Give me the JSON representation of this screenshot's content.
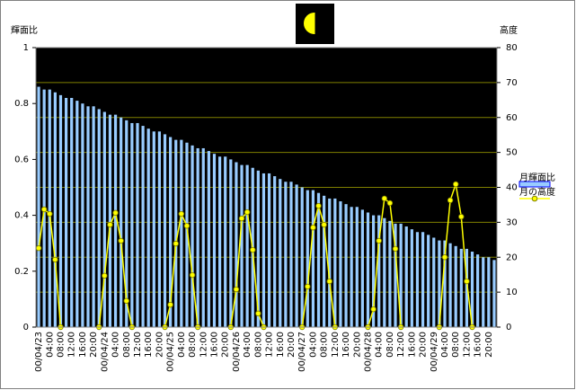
{
  "chart_data": {
    "type": "bar",
    "ylabel": "輝面比",
    "y2label": "高度",
    "categories": [
      "00/04/23",
      null,
      "04:00",
      null,
      "08:00",
      null,
      "12:00",
      null,
      "16:00",
      null,
      "20:00",
      null,
      "00/04/24",
      null,
      "04:00",
      null,
      "08:00",
      null,
      "12:00",
      null,
      "16:00",
      null,
      "20:00",
      null,
      "00/04/25",
      null,
      "04:00",
      null,
      "08:00",
      null,
      "12:00",
      null,
      "16:00",
      null,
      "20:00",
      null,
      "00/04/26",
      null,
      "04:00",
      null,
      "08:00",
      null,
      "12:00",
      null,
      "16:00",
      null,
      "20:00",
      null,
      "00/04/27",
      null,
      "04:00",
      null,
      "08:00",
      null,
      "12:00",
      null,
      "16:00",
      null,
      "20:00",
      null,
      "00/04/28",
      null,
      "04:00",
      null,
      "08:00",
      null,
      "12:00",
      null,
      "16:00",
      null,
      "20:00",
      null,
      "00/04/29",
      null,
      "04:00",
      null,
      "08:00",
      null,
      "12:00",
      null,
      "16:00",
      null,
      "20:00",
      null
    ],
    "series": [
      {
        "name": "月輝面比",
        "type": "bar",
        "color": "#99ccff",
        "values": [
          0.86,
          0.85,
          0.85,
          0.84,
          0.83,
          0.82,
          0.82,
          0.81,
          0.8,
          0.79,
          0.79,
          0.78,
          0.77,
          0.76,
          0.76,
          0.75,
          0.74,
          0.73,
          0.73,
          0.72,
          0.71,
          0.7,
          0.7,
          0.69,
          0.68,
          0.67,
          0.67,
          0.66,
          0.65,
          0.64,
          0.64,
          0.63,
          0.62,
          0.61,
          0.61,
          0.6,
          0.59,
          0.58,
          0.58,
          0.57,
          0.56,
          0.55,
          0.55,
          0.54,
          0.53,
          0.52,
          0.52,
          0.51,
          0.5,
          0.49,
          0.49,
          0.48,
          0.47,
          0.46,
          0.46,
          0.45,
          0.44,
          0.43,
          0.43,
          0.42,
          0.41,
          0.4,
          0.4,
          0.39,
          0.38,
          0.37,
          0.37,
          0.36,
          0.35,
          0.34,
          0.34,
          0.33,
          0.32,
          0.31,
          0.31,
          0.3,
          0.29,
          0.28,
          0.28,
          0.27,
          0.26,
          0.25,
          0.25,
          0.24
        ]
      },
      {
        "name": "月の高度",
        "type": "line",
        "axis": "y2",
        "color": "#ffff00",
        "values": [
          22.6,
          33.7,
          32.4,
          19.3,
          0,
          null,
          null,
          null,
          null,
          null,
          null,
          0,
          14.7,
          29.3,
          32.7,
          24.7,
          7.5,
          0,
          null,
          null,
          null,
          null,
          null,
          0,
          6.4,
          23.9,
          32.4,
          29,
          14.9,
          0,
          null,
          null,
          null,
          null,
          null,
          0,
          10.8,
          31.1,
          32.9,
          22.1,
          3.9,
          0,
          null,
          null,
          null,
          null,
          null,
          null,
          0,
          11.6,
          28.5,
          34.7,
          29.3,
          13.1,
          0,
          null,
          null,
          null,
          null,
          null,
          0,
          5.1,
          24.7,
          36.8,
          35.5,
          22.4,
          0,
          null,
          null,
          null,
          null,
          null,
          null,
          0,
          20,
          36.3,
          40.9,
          31.6,
          13.1,
          0,
          null,
          null,
          null,
          null
        ]
      }
    ],
    "ylim": [
      0,
      1
    ],
    "yticks": [
      0,
      0.2,
      0.4,
      0.6,
      0.8,
      1
    ],
    "y2lim": [
      0,
      80
    ],
    "y2ticks": [
      0,
      10,
      20,
      30,
      40,
      50,
      60,
      70,
      80
    ],
    "grid": true,
    "legend": "right"
  }
}
